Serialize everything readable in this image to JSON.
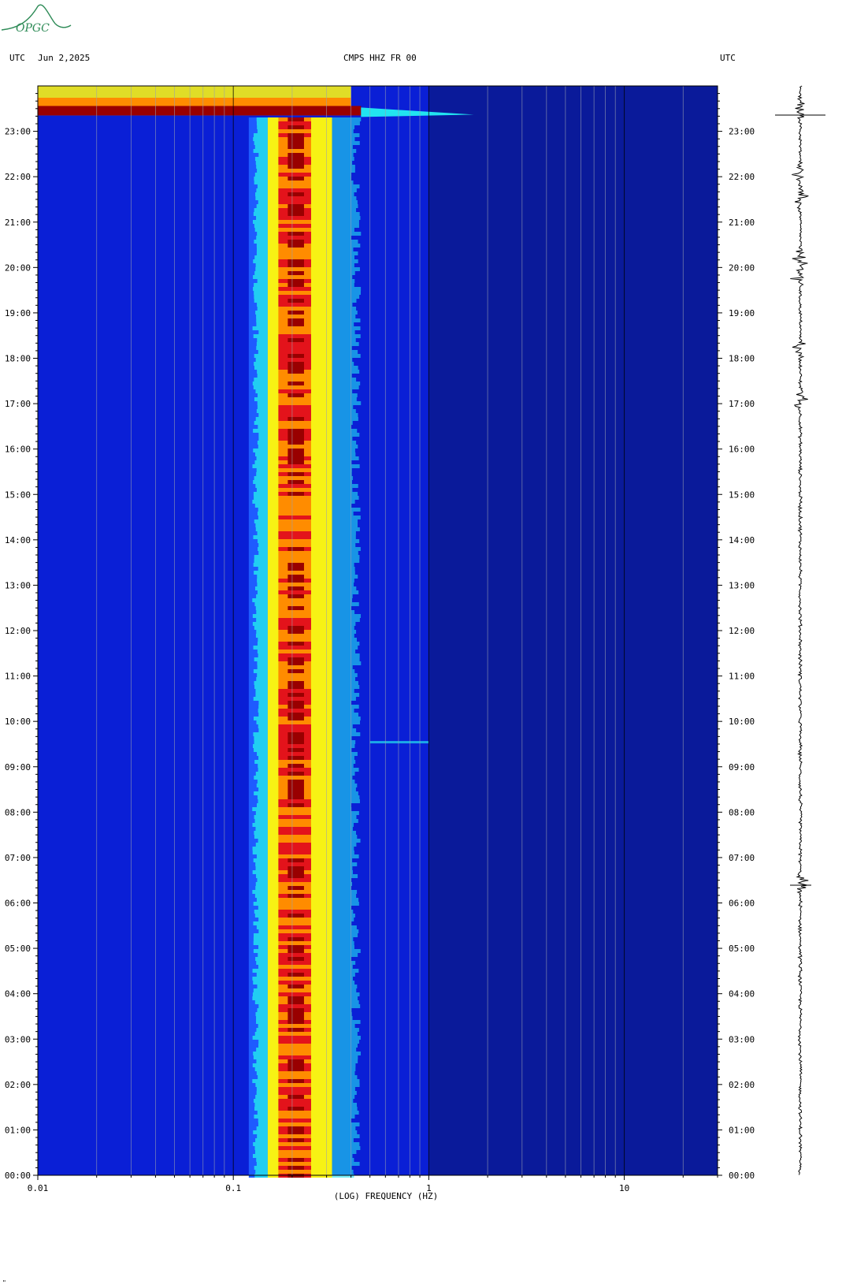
{
  "logo": {
    "text": "OPGC",
    "color": "#2e8b57"
  },
  "header": {
    "left_label": "UTC",
    "date": "Jun 2,2025",
    "station": "CMPS HHZ FR 00",
    "right_label": "UTC"
  },
  "footer": {
    "mark": "\""
  },
  "colors": {
    "background": "#0a1fd6",
    "deep": "#0a1a9a",
    "band_low": "#1e5bff",
    "cyan": "#22e3f0",
    "yellow": "#f7f214",
    "orange": "#ff8c00",
    "red": "#e3131b",
    "dark_red": "#990000"
  },
  "chart_data": {
    "type": "heatmap",
    "title": "CMPS HHZ FR 00",
    "xlabel": "(LOG) FREQUENCY (HZ)",
    "x_scale": "log",
    "xlim": [
      0.01,
      30
    ],
    "x_ticks": [
      {
        "value": 0.01,
        "label": "0.01"
      },
      {
        "value": 0.1,
        "label": "0.1"
      },
      {
        "value": 1,
        "label": "1"
      },
      {
        "value": 10,
        "label": "10"
      }
    ],
    "y_ticks": [
      "00:00",
      "01:00",
      "02:00",
      "03:00",
      "04:00",
      "05:00",
      "06:00",
      "07:00",
      "08:00",
      "09:00",
      "10:00",
      "11:00",
      "12:00",
      "13:00",
      "14:00",
      "15:00",
      "16:00",
      "17:00",
      "18:00",
      "19:00",
      "20:00",
      "21:00",
      "22:00",
      "23:00"
    ],
    "ylim_hours": [
      0,
      24
    ],
    "microseism_band_hz": [
      0.15,
      0.32
    ],
    "microseism_peak_hz": [
      0.17,
      0.25
    ],
    "events": [
      {
        "time_hours": 23.35,
        "fmax_hz": 1.7,
        "label": ""
      },
      {
        "time_hours": 9.55,
        "fmax_hz": 1.0,
        "label": ""
      }
    ],
    "trace_bursts_hours": [
      23.5,
      22.1,
      21.5,
      20.2,
      19.8,
      18.2,
      17.1,
      6.45
    ]
  }
}
